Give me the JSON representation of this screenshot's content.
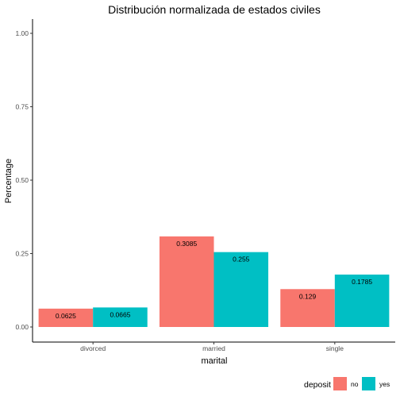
{
  "chart_data": {
    "type": "bar",
    "title": "Distribución normalizada de estados civiles",
    "xlabel": "marital",
    "ylabel": "Percentage",
    "ylim": [
      0,
      1
    ],
    "yticks": [
      "0.00",
      "0.25",
      "0.50",
      "0.75",
      "1.00"
    ],
    "ytick_values": [
      0,
      0.25,
      0.5,
      0.75,
      1.0
    ],
    "categories": [
      "divorced",
      "married",
      "single"
    ],
    "series": [
      {
        "name": "no",
        "color": "#F8766D",
        "values": [
          0.0625,
          0.3085,
          0.129
        ],
        "labels": [
          "0.0625",
          "0.3085",
          "0.129"
        ]
      },
      {
        "name": "yes",
        "color": "#00BFC4",
        "values": [
          0.0665,
          0.255,
          0.1785
        ],
        "labels": [
          "0.0665",
          "0.255",
          "0.1785"
        ]
      }
    ],
    "legend": {
      "title": "deposit",
      "position": "bottom-right"
    },
    "grid": false
  }
}
